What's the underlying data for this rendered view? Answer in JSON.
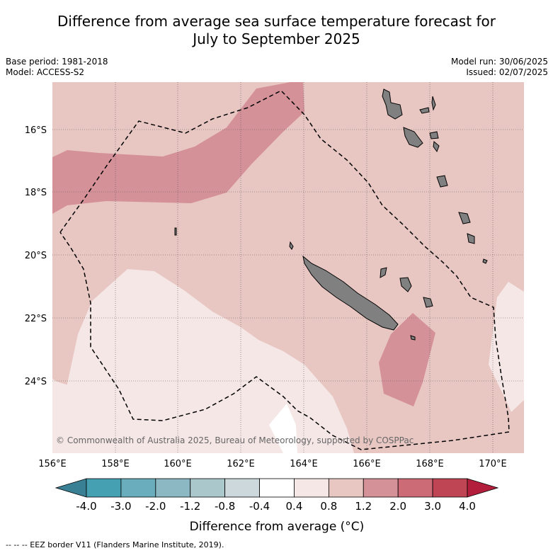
{
  "title_line1": "Difference from average sea surface temperature forecast for",
  "title_line2": "July to September 2025",
  "meta": {
    "base_period": "Base period: 1981-2018",
    "model": "Model: ACCESS-S2",
    "model_run": "Model run: 30/06/2025",
    "issued": "Issued: 02/07/2025"
  },
  "map": {
    "lon_range": [
      156,
      171
    ],
    "lat_range": [
      -26.1,
      -14.3
    ],
    "lat_ticks": [
      "16°S",
      "18°S",
      "20°S",
      "22°S",
      "24°S"
    ],
    "lon_ticks": [
      "156°E",
      "158°E",
      "160°E",
      "162°E",
      "164°E",
      "166°E",
      "168°E",
      "170°E"
    ],
    "copyright": "© Commonwealth of Australia 2025, Bureau of Meteorology, supported by COSPPac",
    "land_color": "#808080",
    "eez_style": "dashed black"
  },
  "chart_data": {
    "type": "heatmap",
    "variable": "Sea surface temperature difference from average",
    "bins": [
      {
        "range": "< -4.0",
        "color": "#3a8094"
      },
      {
        "range": "-4.0 to -3.0",
        "color": "#45a0b2"
      },
      {
        "range": "-3.0 to -2.0",
        "color": "#6aadbc"
      },
      {
        "range": "-2.0 to -1.2",
        "color": "#8bb8c3"
      },
      {
        "range": "-1.2 to -0.8",
        "color": "#aac7cc"
      },
      {
        "range": "-0.8 to -0.4",
        "color": "#ccd8db"
      },
      {
        "range": "-0.4 to 0.4",
        "color": "#ffffff"
      },
      {
        "range": "0.4 to 0.8",
        "color": "#f5e7e6"
      },
      {
        "range": "0.8 to 1.2",
        "color": "#e8c7c3"
      },
      {
        "range": "1.2 to 2.0",
        "color": "#d59198"
      },
      {
        "range": "2.0 to 3.0",
        "color": "#cc6a76"
      },
      {
        "range": "3.0 to 4.0",
        "color": "#bf4555"
      },
      {
        "range": "> 4.0",
        "color": "#b21e3b"
      }
    ],
    "colorbar_ticks": [
      "-4.0",
      "-3.0",
      "-2.0",
      "-1.2",
      "-0.8",
      "-0.4",
      "0.4",
      "0.8",
      "1.2",
      "2.0",
      "3.0",
      "4.0"
    ],
    "colorbar_label": "Difference from average (°C)",
    "regions": [
      {
        "category": "0.8 to 1.2",
        "description": "Background anomaly over most of domain"
      },
      {
        "category": "1.2 to 2.0",
        "description": "Band from 156°E to ~164°E between ~16.5°S and ~18.5°S"
      },
      {
        "category": "1.2 to 2.0",
        "description": "Patch east of New Caledonia near 166.5–167.5°E, 22–24.5°S"
      },
      {
        "category": "0.4 to 0.8",
        "description": "Area south-west of New Caledonia ~157–164°E, 20.5–26°S"
      },
      {
        "category": "0.4 to 0.8",
        "description": "Near 170–171°E, 21.5–24.5°S"
      },
      {
        "category": "-0.4 to 0.4",
        "description": "Small patch near 163–164°E, 25–26°S"
      }
    ]
  },
  "footer": "--  --  -- EEZ border V11 (Flanders Marine Institute, 2019)."
}
